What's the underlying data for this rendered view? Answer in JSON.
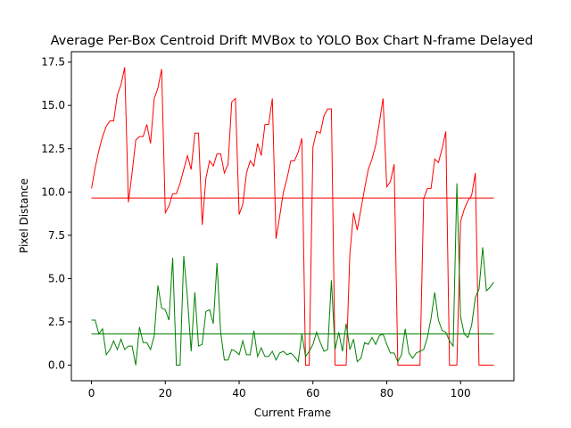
{
  "chart_data": {
    "type": "line",
    "title": "Average Per-Box Centroid Drift MVBox to YOLO Box Chart N-frame Delayed",
    "xlabel": "Current Frame",
    "ylabel": "Pixel Distance",
    "xlim": [
      -5.45,
      114.45
    ],
    "ylim": [
      -0.9,
      18.1
    ],
    "xticks": [
      0,
      20,
      40,
      60,
      80,
      100
    ],
    "xtick_labels": [
      "0",
      "20",
      "40",
      "60",
      "80",
      "100"
    ],
    "yticks": [
      0.0,
      2.5,
      5.0,
      7.5,
      10.0,
      12.5,
      15.0,
      17.5
    ],
    "ytick_labels": [
      "0.0",
      "2.5",
      "5.0",
      "7.5",
      "10.0",
      "12.5",
      "15.0",
      "17.5"
    ],
    "grid": false,
    "legend": "none",
    "series": [
      {
        "color": "#ff0000",
        "values": [
          10.2,
          11.4,
          12.4,
          13.2,
          13.8,
          14.1,
          14.1,
          15.6,
          16.2,
          17.2,
          9.4,
          11.1,
          13.0,
          13.2,
          13.2,
          13.9,
          12.8,
          15.4,
          16.0,
          17.1,
          8.8,
          9.2,
          9.9,
          9.9,
          10.5,
          11.3,
          12.1,
          11.3,
          13.4,
          13.4,
          8.1,
          10.8,
          11.8,
          11.5,
          12.2,
          12.2,
          11.1,
          11.6,
          15.2,
          15.4,
          8.7,
          9.3,
          11.1,
          11.8,
          11.5,
          12.8,
          12.1,
          13.9,
          13.9,
          15.4,
          7.3,
          8.6,
          10.0,
          10.8,
          11.8,
          11.8,
          12.3,
          13.1,
          0.0,
          0.0,
          12.6,
          13.5,
          13.4,
          14.4,
          14.8,
          14.8,
          0.0,
          0.0,
          0.0,
          0.0,
          6.4,
          8.8,
          7.8,
          9.0,
          10.2,
          11.3,
          11.9,
          12.7,
          14.0,
          15.4,
          10.3,
          10.6,
          11.6,
          0.0,
          0.0,
          0.0,
          0.0,
          0.0,
          0.0,
          0.0,
          9.6,
          10.2,
          10.2,
          11.9,
          11.7,
          12.5,
          13.5,
          0.0,
          0.0,
          0.0,
          8.3,
          9.0,
          9.5,
          9.8,
          11.1,
          0.0,
          0.0,
          0.0,
          0.0,
          0.0
        ]
      },
      {
        "color": "#ff0000",
        "x": [
          0,
          109
        ],
        "values": [
          9.65,
          9.65
        ]
      },
      {
        "color": "#008000",
        "values": [
          2.6,
          2.6,
          1.8,
          2.1,
          0.6,
          0.9,
          1.4,
          0.9,
          1.5,
          0.9,
          1.1,
          1.1,
          0.0,
          2.2,
          1.3,
          1.3,
          0.9,
          1.7,
          4.6,
          3.3,
          3.2,
          2.6,
          6.2,
          0.0,
          0.0,
          6.3,
          3.9,
          0.8,
          4.2,
          1.1,
          1.2,
          3.1,
          3.2,
          2.4,
          5.9,
          1.9,
          0.3,
          0.3,
          0.9,
          0.8,
          0.6,
          1.4,
          0.6,
          0.6,
          2.0,
          0.5,
          1.0,
          0.5,
          0.5,
          0.8,
          0.3,
          0.7,
          0.8,
          0.6,
          0.7,
          0.5,
          0.2,
          1.8,
          0.5,
          0.8,
          1.2,
          1.9,
          1.3,
          0.8,
          0.9,
          4.9,
          0.9,
          1.9,
          0.8,
          2.4,
          0.9,
          1.5,
          0.2,
          0.4,
          1.3,
          1.2,
          1.6,
          1.2,
          1.7,
          1.8,
          1.2,
          0.7,
          0.7,
          0.2,
          0.6,
          2.1,
          0.7,
          0.4,
          0.7,
          0.8,
          0.9,
          1.6,
          2.7,
          4.2,
          2.6,
          2.0,
          1.9,
          1.4,
          1.1,
          10.5,
          2.8,
          1.8,
          1.6,
          2.3,
          3.9,
          4.4,
          6.8,
          4.3,
          4.5,
          4.8
        ]
      },
      {
        "color": "#008000",
        "x": [
          0,
          109
        ],
        "values": [
          1.8,
          1.8
        ]
      }
    ]
  }
}
